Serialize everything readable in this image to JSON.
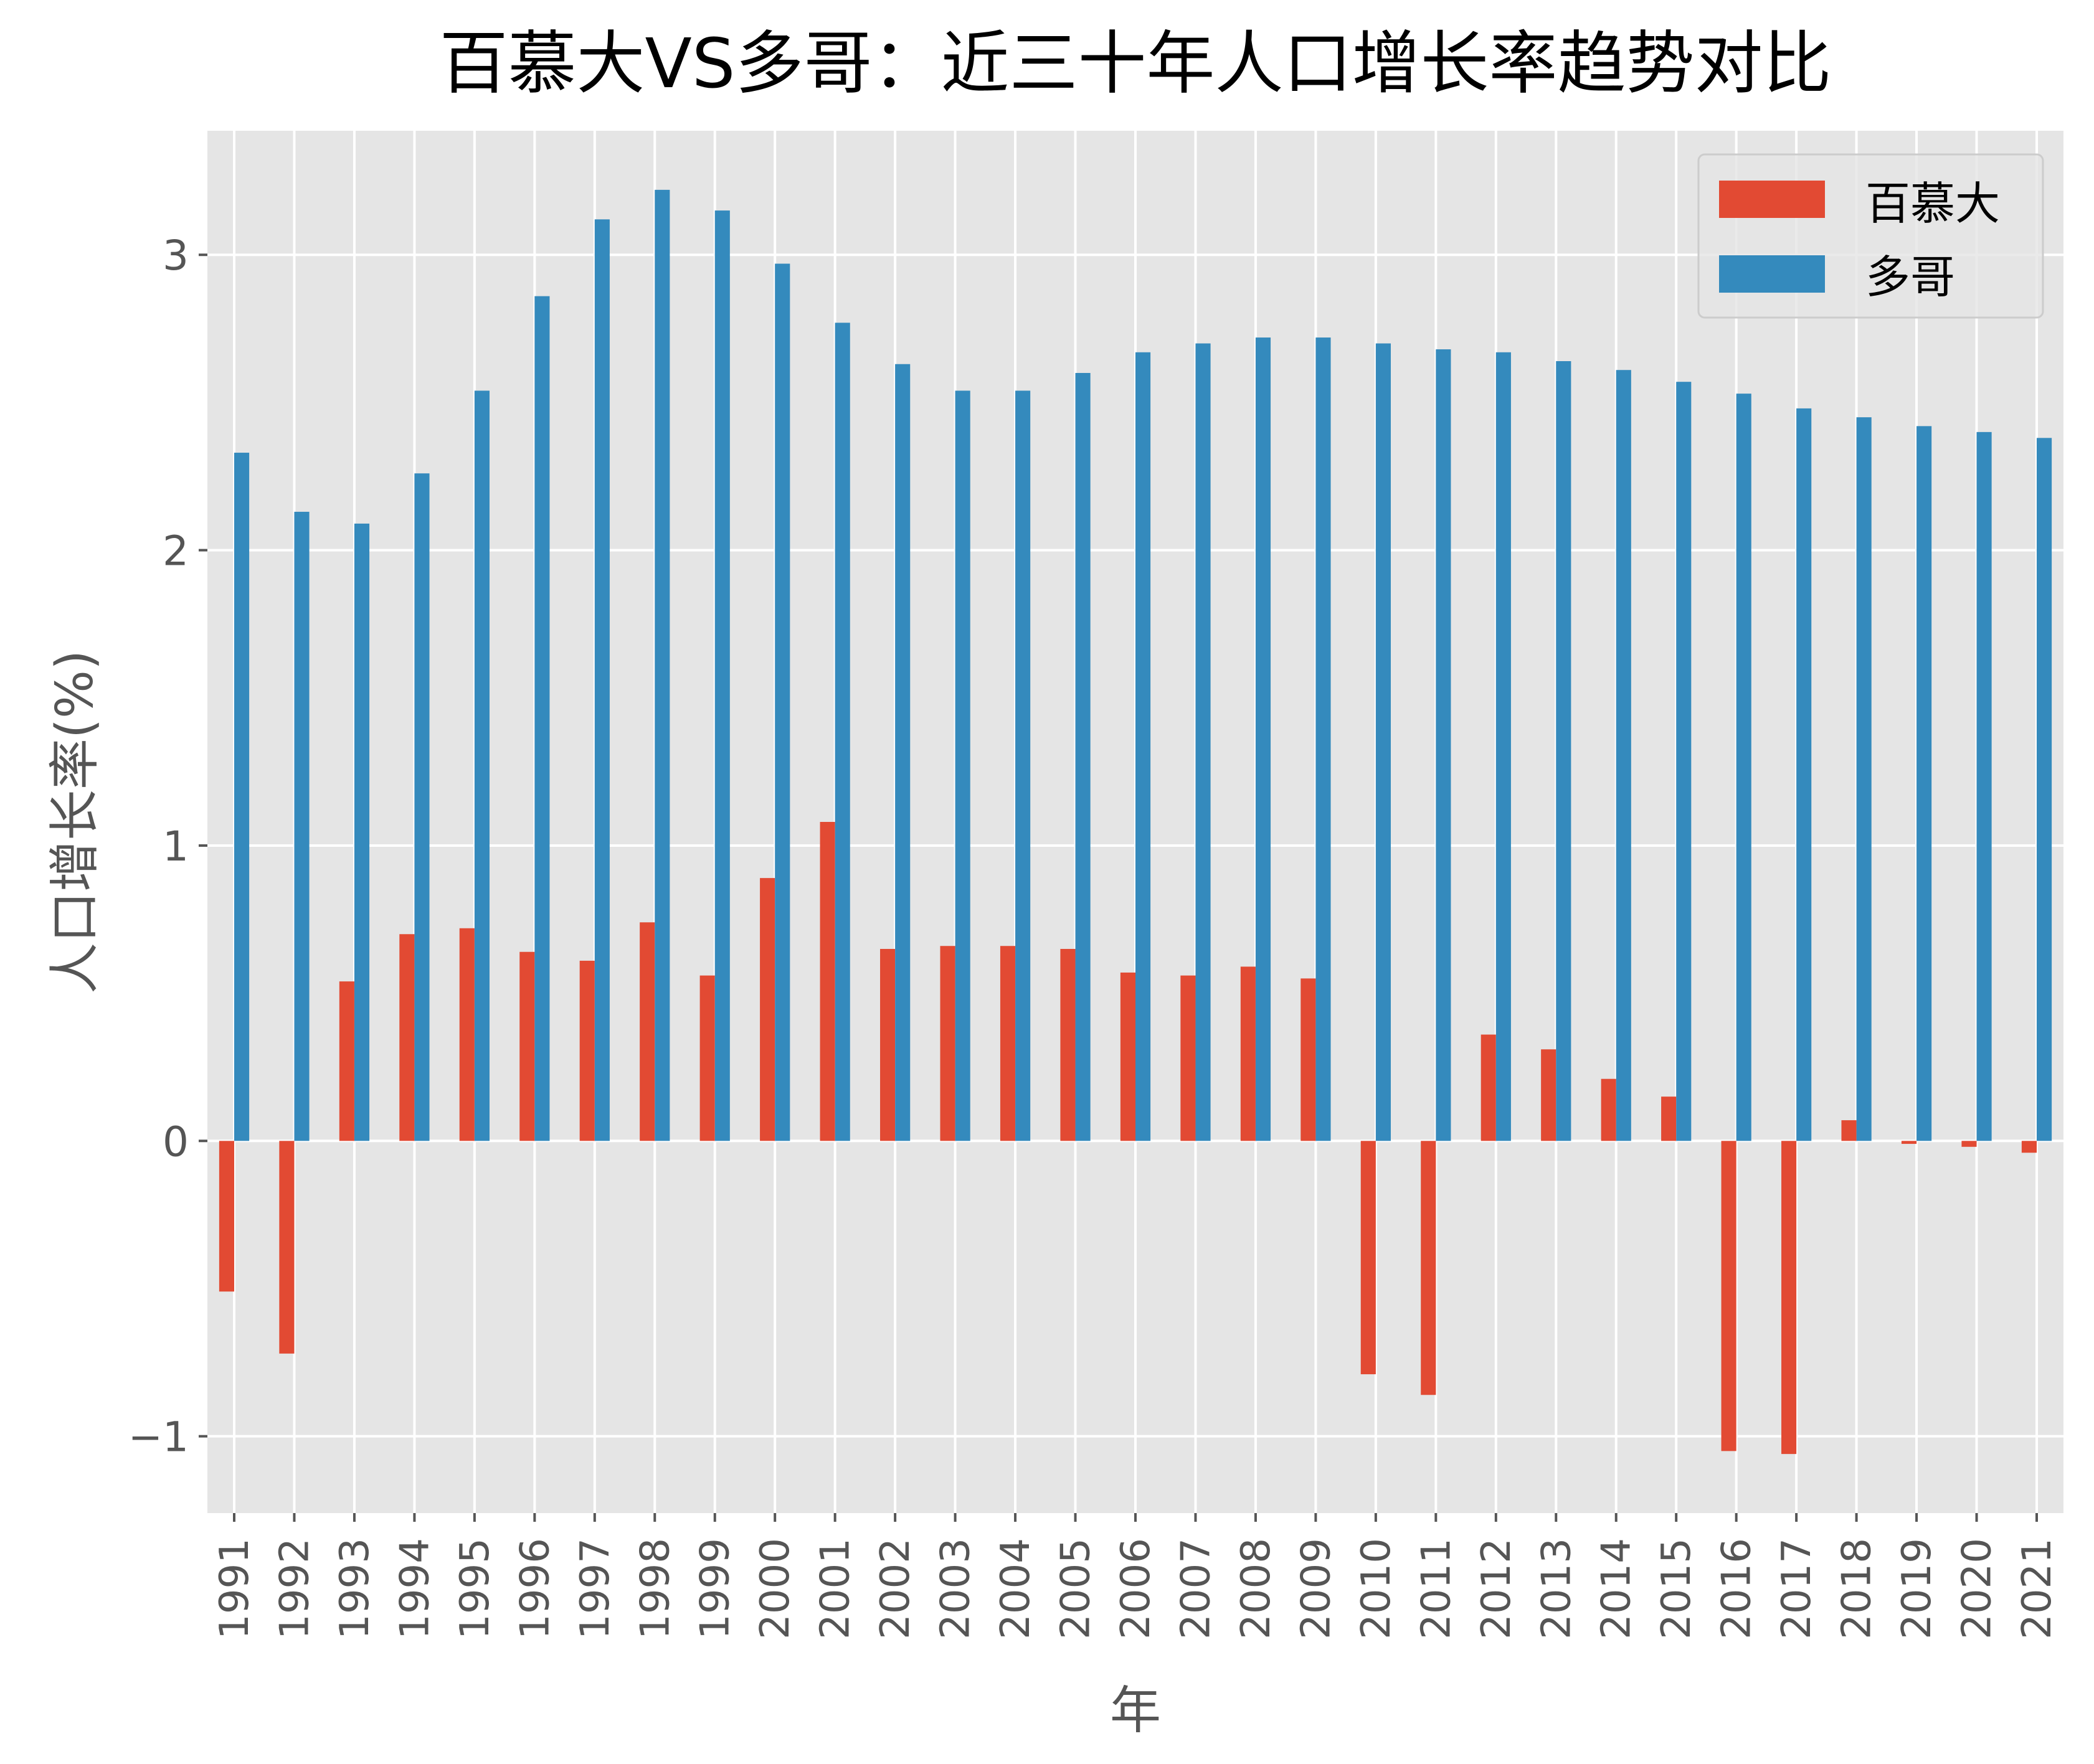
{
  "chart_data": {
    "type": "bar",
    "title": "百慕大VS多哥：近三十年人口增长率趋势对比",
    "xlabel": "年",
    "ylabel": "人口增长率(%)",
    "ylim": [
      -1.26,
      3.42
    ],
    "yticks": [
      -1,
      0,
      1,
      2,
      3
    ],
    "ytick_labels": [
      "−1",
      "0",
      "1",
      "2",
      "3"
    ],
    "grid": true,
    "legend_position": "top-right",
    "categories": [
      "1991",
      "1992",
      "1993",
      "1994",
      "1995",
      "1996",
      "1997",
      "1998",
      "1999",
      "2000",
      "2001",
      "2002",
      "2003",
      "2004",
      "2005",
      "2006",
      "2007",
      "2008",
      "2009",
      "2010",
      "2011",
      "2012",
      "2013",
      "2014",
      "2015",
      "2016",
      "2017",
      "2018",
      "2019",
      "2020",
      "2021"
    ],
    "series": [
      {
        "name": "百慕大",
        "color": "#E24A33",
        "values": [
          -0.51,
          -0.72,
          0.54,
          0.7,
          0.72,
          0.64,
          0.61,
          0.74,
          0.56,
          0.89,
          1.08,
          0.65,
          0.66,
          0.66,
          0.65,
          0.57,
          0.56,
          0.59,
          0.55,
          -0.79,
          -0.86,
          0.36,
          0.31,
          0.21,
          0.15,
          -1.05,
          -1.06,
          0.07,
          -0.01,
          -0.02,
          -0.04
        ]
      },
      {
        "name": "多哥",
        "color": "#348ABD",
        "values": [
          2.33,
          2.13,
          2.09,
          2.26,
          2.54,
          2.86,
          3.12,
          3.22,
          3.15,
          2.97,
          2.77,
          2.63,
          2.54,
          2.54,
          2.6,
          2.67,
          2.7,
          2.72,
          2.72,
          2.7,
          2.68,
          2.67,
          2.64,
          2.61,
          2.57,
          2.53,
          2.48,
          2.45,
          2.42,
          2.4,
          2.38
        ]
      }
    ]
  }
}
